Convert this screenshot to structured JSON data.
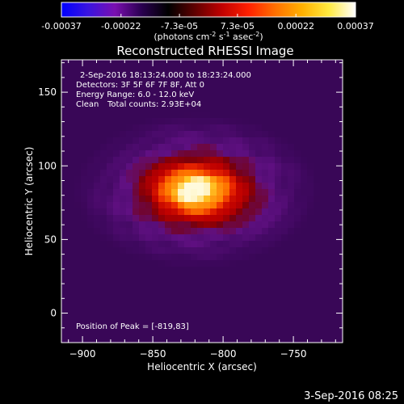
{
  "colorbar": {
    "tick_labels": [
      "-0.00037",
      "-0.00022",
      "-7.3e-05",
      "7.3e-05",
      "0.00022",
      "0.00037"
    ],
    "tick_values": [
      -0.00037,
      -0.00022,
      -7.3e-05,
      7.3e-05,
      0.00022,
      0.00037
    ],
    "unit_prefix": "(photons cm",
    "unit_exp1": "-2",
    "unit_mid": " s",
    "unit_exp2": "-1",
    "unit_suffix": " asec",
    "unit_exp3": "-2",
    "unit_close": ")",
    "colors": [
      "#0000ff",
      "#3a14e0",
      "#7a0fb0",
      "#2a0050",
      "#000000",
      "#600000",
      "#c00000",
      "#ff2000",
      "#ff7000",
      "#ffb000",
      "#ffea40",
      "#ffffff"
    ]
  },
  "chart_data": {
    "type": "heatmap",
    "title": "Reconstructed RHESSI Image",
    "xlabel": "Heliocentric X (arcsec)",
    "ylabel": "Heliocentric Y (arcsec)",
    "xlim": [
      -915,
      -715
    ],
    "ylim": [
      -20,
      172
    ],
    "x_ticks": [
      -900,
      -850,
      -800,
      -750
    ],
    "x_tick_labels": [
      "−900",
      "−850",
      "−800",
      "−750"
    ],
    "y_ticks": [
      0,
      50,
      100,
      150
    ],
    "y_tick_labels": [
      "0",
      "50",
      "100",
      "150"
    ],
    "peak": [
      -819,
      83
    ],
    "annotations": {
      "time_range": "2-Sep-2016 18:13:24.000 to 18:23:24.000",
      "detectors": "Detectors: 3F 5F 6F 7F 8F, Att 0",
      "energy": "Energy Range: 6.0 - 12.0 keV",
      "algorithm": "Clean",
      "counts": "Total counts: 2.93E+04",
      "peak_text": "Position of Peak = [-819,83]"
    }
  },
  "footer": {
    "date": "3-Sep-2016 08:25"
  }
}
